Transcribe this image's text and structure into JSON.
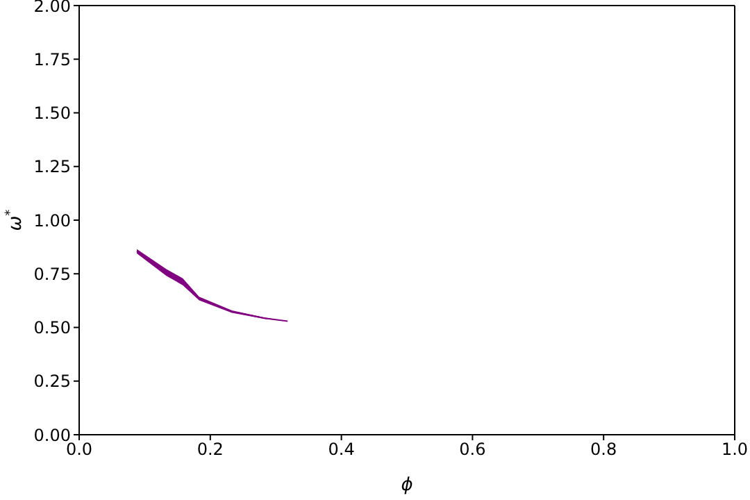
{
  "chart_data": {
    "type": "line",
    "xlabel": "ϕ",
    "ylabel": "ω$^{*}$",
    "xlim": [
      0,
      1
    ],
    "ylim": [
      0,
      2
    ],
    "xticks": [
      {
        "value": 0,
        "label": "0.0"
      },
      {
        "value": 0.2,
        "label": "0.2"
      },
      {
        "value": 0.4,
        "label": "0.4"
      },
      {
        "value": 0.6,
        "label": "0.6"
      },
      {
        "value": 0.8,
        "label": "0.8"
      },
      {
        "value": 1,
        "label": "1.0"
      }
    ],
    "yticks": [
      {
        "value": 0,
        "label": "0.00"
      },
      {
        "value": 0.25,
        "label": "0.25"
      },
      {
        "value": 0.5,
        "label": "0.50"
      },
      {
        "value": 0.75,
        "label": "0.75"
      },
      {
        "value": 1,
        "label": "1.00"
      },
      {
        "value": 1.25,
        "label": "1.25"
      },
      {
        "value": 1.5,
        "label": "1.50"
      },
      {
        "value": 1.75,
        "label": "1.75"
      },
      {
        "value": 2,
        "label": "2.00"
      }
    ],
    "x": [
      0.088,
      0.133,
      0.158,
      0.183,
      0.233,
      0.283,
      0.318
    ],
    "series": [
      {
        "color": "#800080",
        "values": [
          0.855,
          0.756,
          0.713,
          0.635,
          0.574,
          0.543,
          0.529
        ],
        "lower": [
          0.845,
          0.74,
          0.697,
          0.626,
          0.568,
          0.54,
          0.529
        ],
        "upper": [
          0.865,
          0.772,
          0.729,
          0.643,
          0.579,
          0.546,
          0.529
        ]
      }
    ],
    "grid": false,
    "legend": false,
    "marker": "none",
    "line_style": "solid"
  }
}
